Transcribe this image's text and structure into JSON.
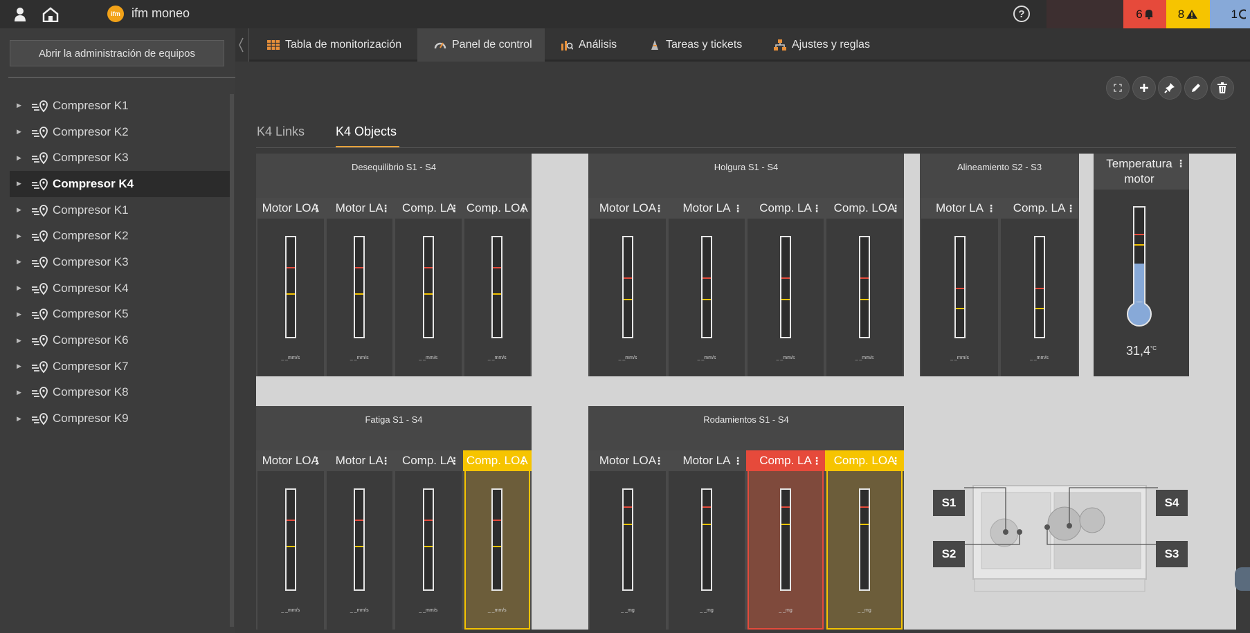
{
  "app": {
    "title": "ifm moneo",
    "logo_text": "ifm"
  },
  "badges": [
    {
      "label": "6",
      "icon": "bell-icon",
      "color": "#e64a3b"
    },
    {
      "label": "8",
      "icon": "warning-icon",
      "color": "#f6c400"
    },
    {
      "label": "1",
      "icon": "info-icon",
      "color": "#87a9d8"
    }
  ],
  "sidebar": {
    "admin_button": "Abrir la administración de equipos",
    "items": [
      {
        "label": "Compresor K1"
      },
      {
        "label": "Compresor K2"
      },
      {
        "label": "Compresor K3"
      },
      {
        "label": "Compresor K4",
        "active": true
      },
      {
        "label": "Compresor K1"
      },
      {
        "label": "Compresor K2"
      },
      {
        "label": "Compresor K3"
      },
      {
        "label": "Compresor K4"
      },
      {
        "label": "Compresor K5"
      },
      {
        "label": "Compresor K6"
      },
      {
        "label": "Compresor K7"
      },
      {
        "label": "Compresor K8"
      },
      {
        "label": "Compresor K9"
      }
    ]
  },
  "nav": {
    "tabs": [
      {
        "label": "Tabla de monitorización",
        "icon": "table-icon"
      },
      {
        "label": "Panel de control",
        "icon": "gauge-icon",
        "active": true
      },
      {
        "label": "Análisis",
        "icon": "analysis-icon"
      },
      {
        "label": "Tareas y tickets",
        "icon": "tasks-icon"
      },
      {
        "label": "Ajustes y reglas",
        "icon": "settings-icon"
      }
    ]
  },
  "toolbar": {
    "buttons": [
      "fullscreen-icon",
      "add-icon",
      "pin-icon",
      "edit-icon",
      "delete-icon"
    ]
  },
  "subtabs": [
    {
      "label": "K4 Links"
    },
    {
      "label": "K4 Objects",
      "active": true
    }
  ],
  "groups": [
    {
      "title": "Desequilibrio S1 - S4",
      "gauges": [
        {
          "label": "Motor LOA",
          "unit": "_ _mm/s",
          "red": 0.29,
          "yellow": 0.55,
          "state": "normal"
        },
        {
          "label": "Motor LA",
          "unit": "_ _mm/s",
          "red": 0.29,
          "yellow": 0.55,
          "state": "normal"
        },
        {
          "label": "Comp. LA",
          "unit": "_ _mm/s",
          "red": 0.29,
          "yellow": 0.55,
          "state": "normal"
        },
        {
          "label": "Comp. LOA",
          "unit": "_ _mm/s",
          "red": 0.29,
          "yellow": 0.55,
          "state": "normal"
        }
      ]
    },
    {
      "title": "Holgura S1 - S4",
      "gauges": [
        {
          "label": "Motor LOA",
          "unit": "_ _mm/s",
          "red": 0.39,
          "yellow": 0.6,
          "state": "normal"
        },
        {
          "label": "Motor LA",
          "unit": "_ _mm/s",
          "red": 0.39,
          "yellow": 0.6,
          "state": "normal"
        },
        {
          "label": "Comp. LA",
          "unit": "_ _mm/s",
          "red": 0.39,
          "yellow": 0.6,
          "state": "normal"
        },
        {
          "label": "Comp. LOA",
          "unit": "_ _mm/s",
          "red": 0.39,
          "yellow": 0.6,
          "state": "normal"
        }
      ]
    },
    {
      "title": "Alineamiento S2 - S3",
      "gauges": [
        {
          "label": "Motor LA",
          "unit": "_ _mm/s",
          "red": 0.49,
          "yellow": 0.69,
          "state": "normal"
        },
        {
          "label": "Comp. LA",
          "unit": "_ _mm/s",
          "red": 0.49,
          "yellow": 0.69,
          "state": "normal"
        }
      ]
    },
    {
      "title": "Fatiga S1 - S4",
      "gauges": [
        {
          "label": "Motor LOA",
          "unit": "_ _mm/s",
          "red": 0.29,
          "yellow": 0.55,
          "state": "normal"
        },
        {
          "label": "Motor LA",
          "unit": "_ _mm/s",
          "red": 0.29,
          "yellow": 0.55,
          "state": "normal"
        },
        {
          "label": "Comp. LA",
          "unit": "_ _mm/s",
          "red": 0.29,
          "yellow": 0.55,
          "state": "normal"
        },
        {
          "label": "Comp. LOA",
          "unit": "_ _mm/s",
          "red": 0.29,
          "yellow": 0.55,
          "state": "warning"
        }
      ]
    },
    {
      "title": "Rodamientos S1 - S4",
      "gauges": [
        {
          "label": "Motor LOA",
          "unit": "_ _mg",
          "red": 0.16,
          "yellow": 0.33,
          "state": "normal"
        },
        {
          "label": "Motor LA",
          "unit": "_ _mg",
          "red": 0.16,
          "yellow": 0.33,
          "state": "normal"
        },
        {
          "label": "Comp. LA",
          "unit": "_ _mg",
          "red": 0.16,
          "yellow": 0.33,
          "state": "alarm"
        },
        {
          "label": "Comp. LOA",
          "unit": "_ _mg",
          "red": 0.16,
          "yellow": 0.33,
          "state": "warning"
        }
      ]
    }
  ],
  "temperature": {
    "title": "Temperatura motor",
    "value": "31,4",
    "unit": "°C",
    "fill_fraction": 0.45
  },
  "sensors": [
    "S1",
    "S2",
    "S3",
    "S4"
  ]
}
